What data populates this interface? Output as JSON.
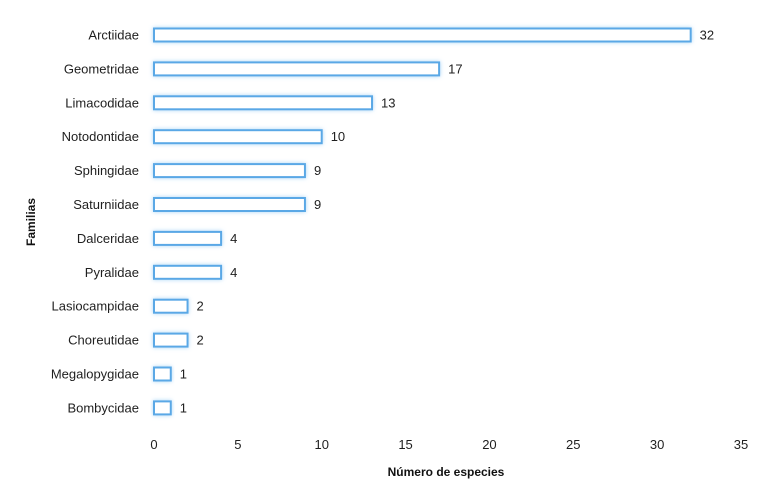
{
  "chart_data": {
    "type": "bar",
    "orientation": "horizontal",
    "categories": [
      "Arctiidae",
      "Geometridae",
      "Limacodidae",
      "Notodontidae",
      "Sphingidae",
      "Saturniidae",
      "Dalceridae",
      "Pyralidae",
      "Lasiocampidae",
      "Choreutidae",
      "Megalopygidae",
      "Bombycidae"
    ],
    "values": [
      32,
      17,
      13,
      10,
      9,
      9,
      4,
      4,
      2,
      2,
      1,
      1
    ],
    "xlabel": "Número de especies",
    "ylabel": "Familias",
    "xlim": [
      0,
      35
    ],
    "xticks": [
      0,
      5,
      10,
      15,
      20,
      25,
      30,
      35
    ],
    "grid": false,
    "data_labels": true,
    "colors": {
      "bar_outline": "#5aa8e6",
      "bar_glow": "#b9dcf7",
      "bar_fill": "#ffffff"
    }
  }
}
